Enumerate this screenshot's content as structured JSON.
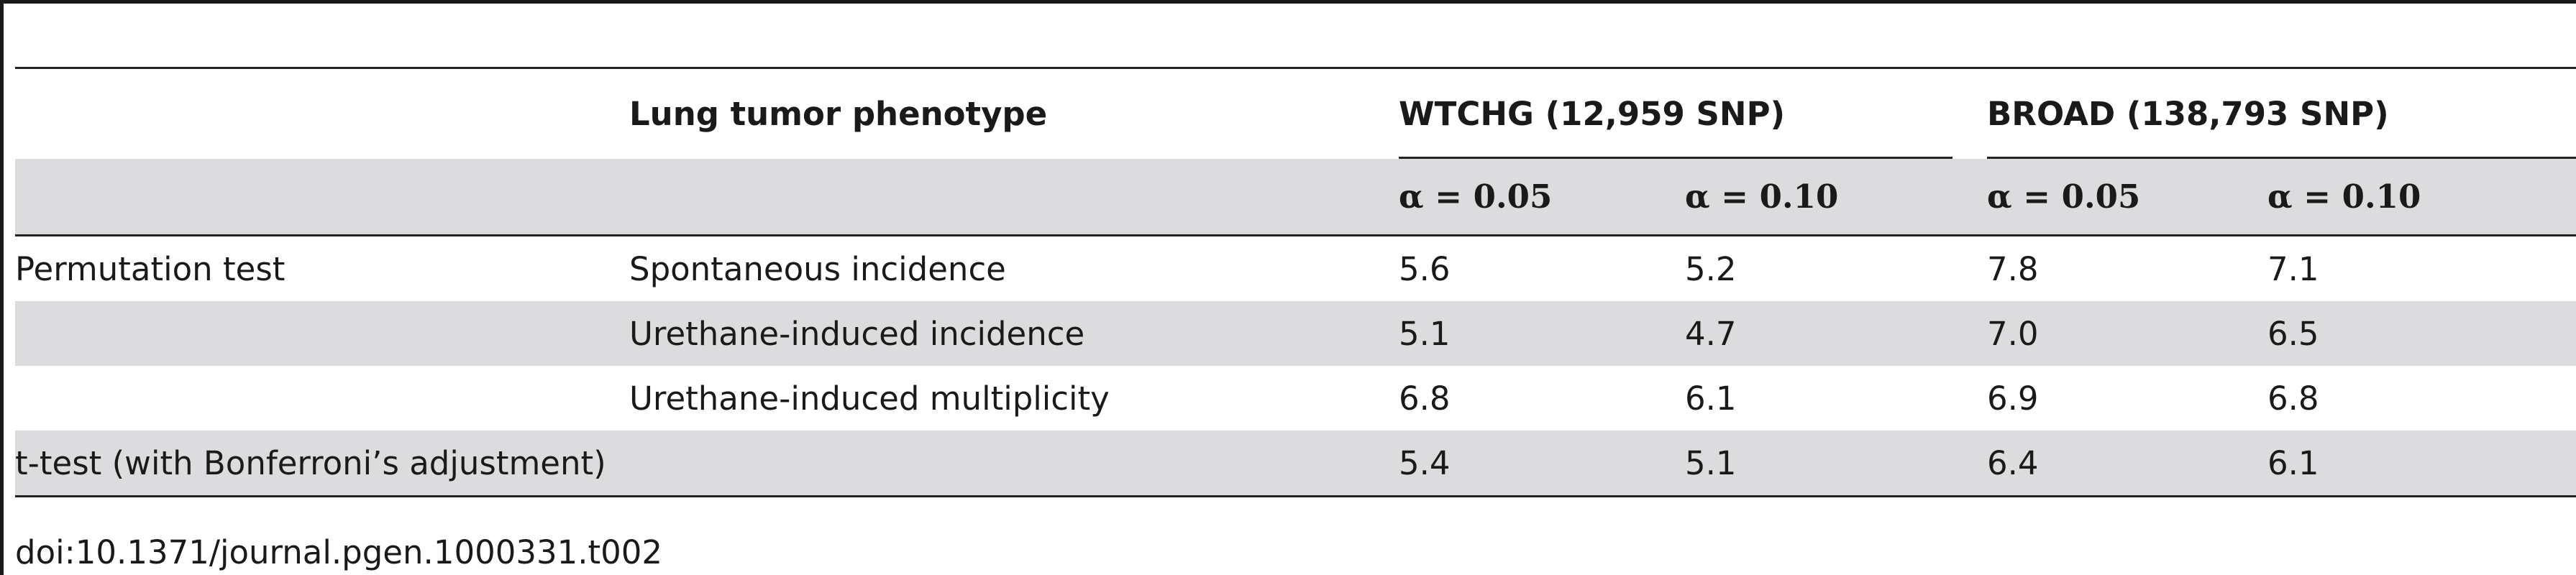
{
  "table": {
    "header": {
      "phenotype_label": "Lung tumor phenotype",
      "group_wtchg": "WTCHG (12,959 SNP)",
      "group_broad": "BROAD (138,793 SNP)",
      "alpha_cols": [
        "α = 0.05",
        "α = 0.10",
        "α = 0.05",
        "α = 0.10"
      ]
    },
    "rows": [
      {
        "method": "Permutation test",
        "phenotype": "Spontaneous incidence",
        "values": [
          "5.6",
          "5.2",
          "7.8",
          "7.1"
        ]
      },
      {
        "method": "",
        "phenotype": "Urethane-induced incidence",
        "values": [
          "5.1",
          "4.7",
          "7.0",
          "6.5"
        ]
      },
      {
        "method": "",
        "phenotype": "Urethane-induced multiplicity",
        "values": [
          "6.8",
          "6.1",
          "6.9",
          "6.8"
        ]
      },
      {
        "method": "t-test (with Bonferroni’s adjustment)",
        "phenotype": "",
        "values": [
          "5.4",
          "5.1",
          "6.4",
          "6.1"
        ]
      }
    ]
  },
  "footer": {
    "doi": "doi:10.1371/journal.pgen.1000331.t002"
  }
}
